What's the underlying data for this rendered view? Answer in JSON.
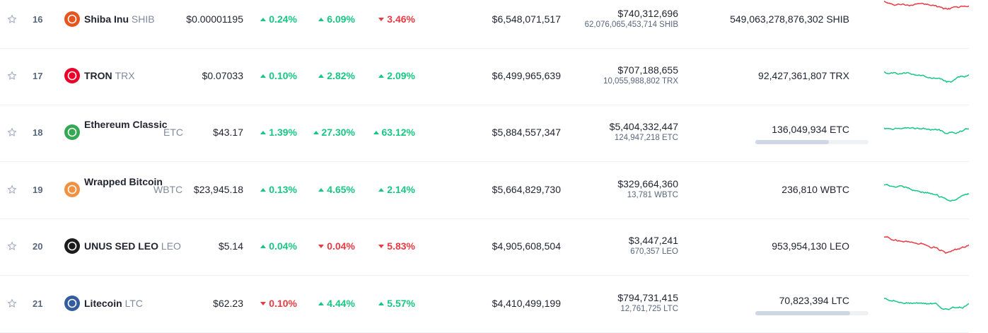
{
  "colors": {
    "up": "#16c784",
    "down": "#ea3943"
  },
  "rows": [
    {
      "rank": "16",
      "name": "Shiba Inu",
      "symbol": "SHIB",
      "icon": "shib-icon",
      "icon_color": "#e8541d",
      "price": "$0.00001195",
      "pct_1h": "0.24%",
      "pct_1h_dir": "up",
      "pct_24h": "6.09%",
      "pct_24h_dir": "up",
      "pct_7d": "3.46%",
      "pct_7d_dir": "down",
      "market_cap": "$6,548,071,517",
      "volume_usd": "$740,312,696",
      "volume_coin": "62,076,065,453,714 SHIB",
      "circulating_supply": "549,063,278,876,302 SHIB",
      "supply_fill": null,
      "spark_color": "down"
    },
    {
      "rank": "17",
      "name": "TRON",
      "symbol": "TRX",
      "icon": "tron-icon",
      "icon_color": "#eb0029",
      "price": "$0.07033",
      "pct_1h": "0.10%",
      "pct_1h_dir": "up",
      "pct_24h": "2.82%",
      "pct_24h_dir": "up",
      "pct_7d": "2.09%",
      "pct_7d_dir": "up",
      "market_cap": "$6,499,965,639",
      "volume_usd": "$707,188,655",
      "volume_coin": "10,055,988,802 TRX",
      "circulating_supply": "92,427,361,807 TRX",
      "supply_fill": null,
      "spark_color": "up"
    },
    {
      "rank": "18",
      "name": "Ethereum Classic",
      "symbol": "ETC",
      "icon": "etc-icon",
      "icon_color": "#34a853",
      "price": "$43.17",
      "pct_1h": "1.39%",
      "pct_1h_dir": "up",
      "pct_24h": "27.30%",
      "pct_24h_dir": "up",
      "pct_7d": "63.12%",
      "pct_7d_dir": "up",
      "market_cap": "$5,884,557,347",
      "volume_usd": "$5,404,332,447",
      "volume_coin": "124,947,218 ETC",
      "circulating_supply": "136,049,934 ETC",
      "supply_fill": 0.65,
      "spark_color": "up"
    },
    {
      "rank": "19",
      "name": "Wrapped Bitcoin",
      "symbol": "WBTC",
      "icon": "wbtc-icon",
      "icon_color": "#f09242",
      "price": "$23,945.18",
      "pct_1h": "0.13%",
      "pct_1h_dir": "up",
      "pct_24h": "4.65%",
      "pct_24h_dir": "up",
      "pct_7d": "2.14%",
      "pct_7d_dir": "up",
      "market_cap": "$5,664,829,730",
      "volume_usd": "$329,664,360",
      "volume_coin": "13,781 WBTC",
      "circulating_supply": "236,810 WBTC",
      "supply_fill": null,
      "spark_color": "up"
    },
    {
      "rank": "20",
      "name": "UNUS SED LEO",
      "symbol": "LEO",
      "icon": "leo-icon",
      "icon_color": "#1c1c1c",
      "price": "$5.14",
      "pct_1h": "0.04%",
      "pct_1h_dir": "up",
      "pct_24h": "0.04%",
      "pct_24h_dir": "down",
      "pct_7d": "5.83%",
      "pct_7d_dir": "down",
      "market_cap": "$4,905,608,504",
      "volume_usd": "$3,447,241",
      "volume_coin": "670,357 LEO",
      "circulating_supply": "953,954,130 LEO",
      "supply_fill": null,
      "spark_color": "down"
    },
    {
      "rank": "21",
      "name": "Litecoin",
      "symbol": "LTC",
      "icon": "ltc-icon",
      "icon_color": "#345d9d",
      "price": "$62.23",
      "pct_1h": "0.10%",
      "pct_1h_dir": "down",
      "pct_24h": "4.44%",
      "pct_24h_dir": "up",
      "pct_7d": "5.57%",
      "pct_7d_dir": "up",
      "market_cap": "$4,410,499,199",
      "volume_usd": "$794,731,415",
      "volume_coin": "12,761,725 LTC",
      "circulating_supply": "70,823,394 LTC",
      "supply_fill": 0.84,
      "spark_color": "up"
    }
  ]
}
